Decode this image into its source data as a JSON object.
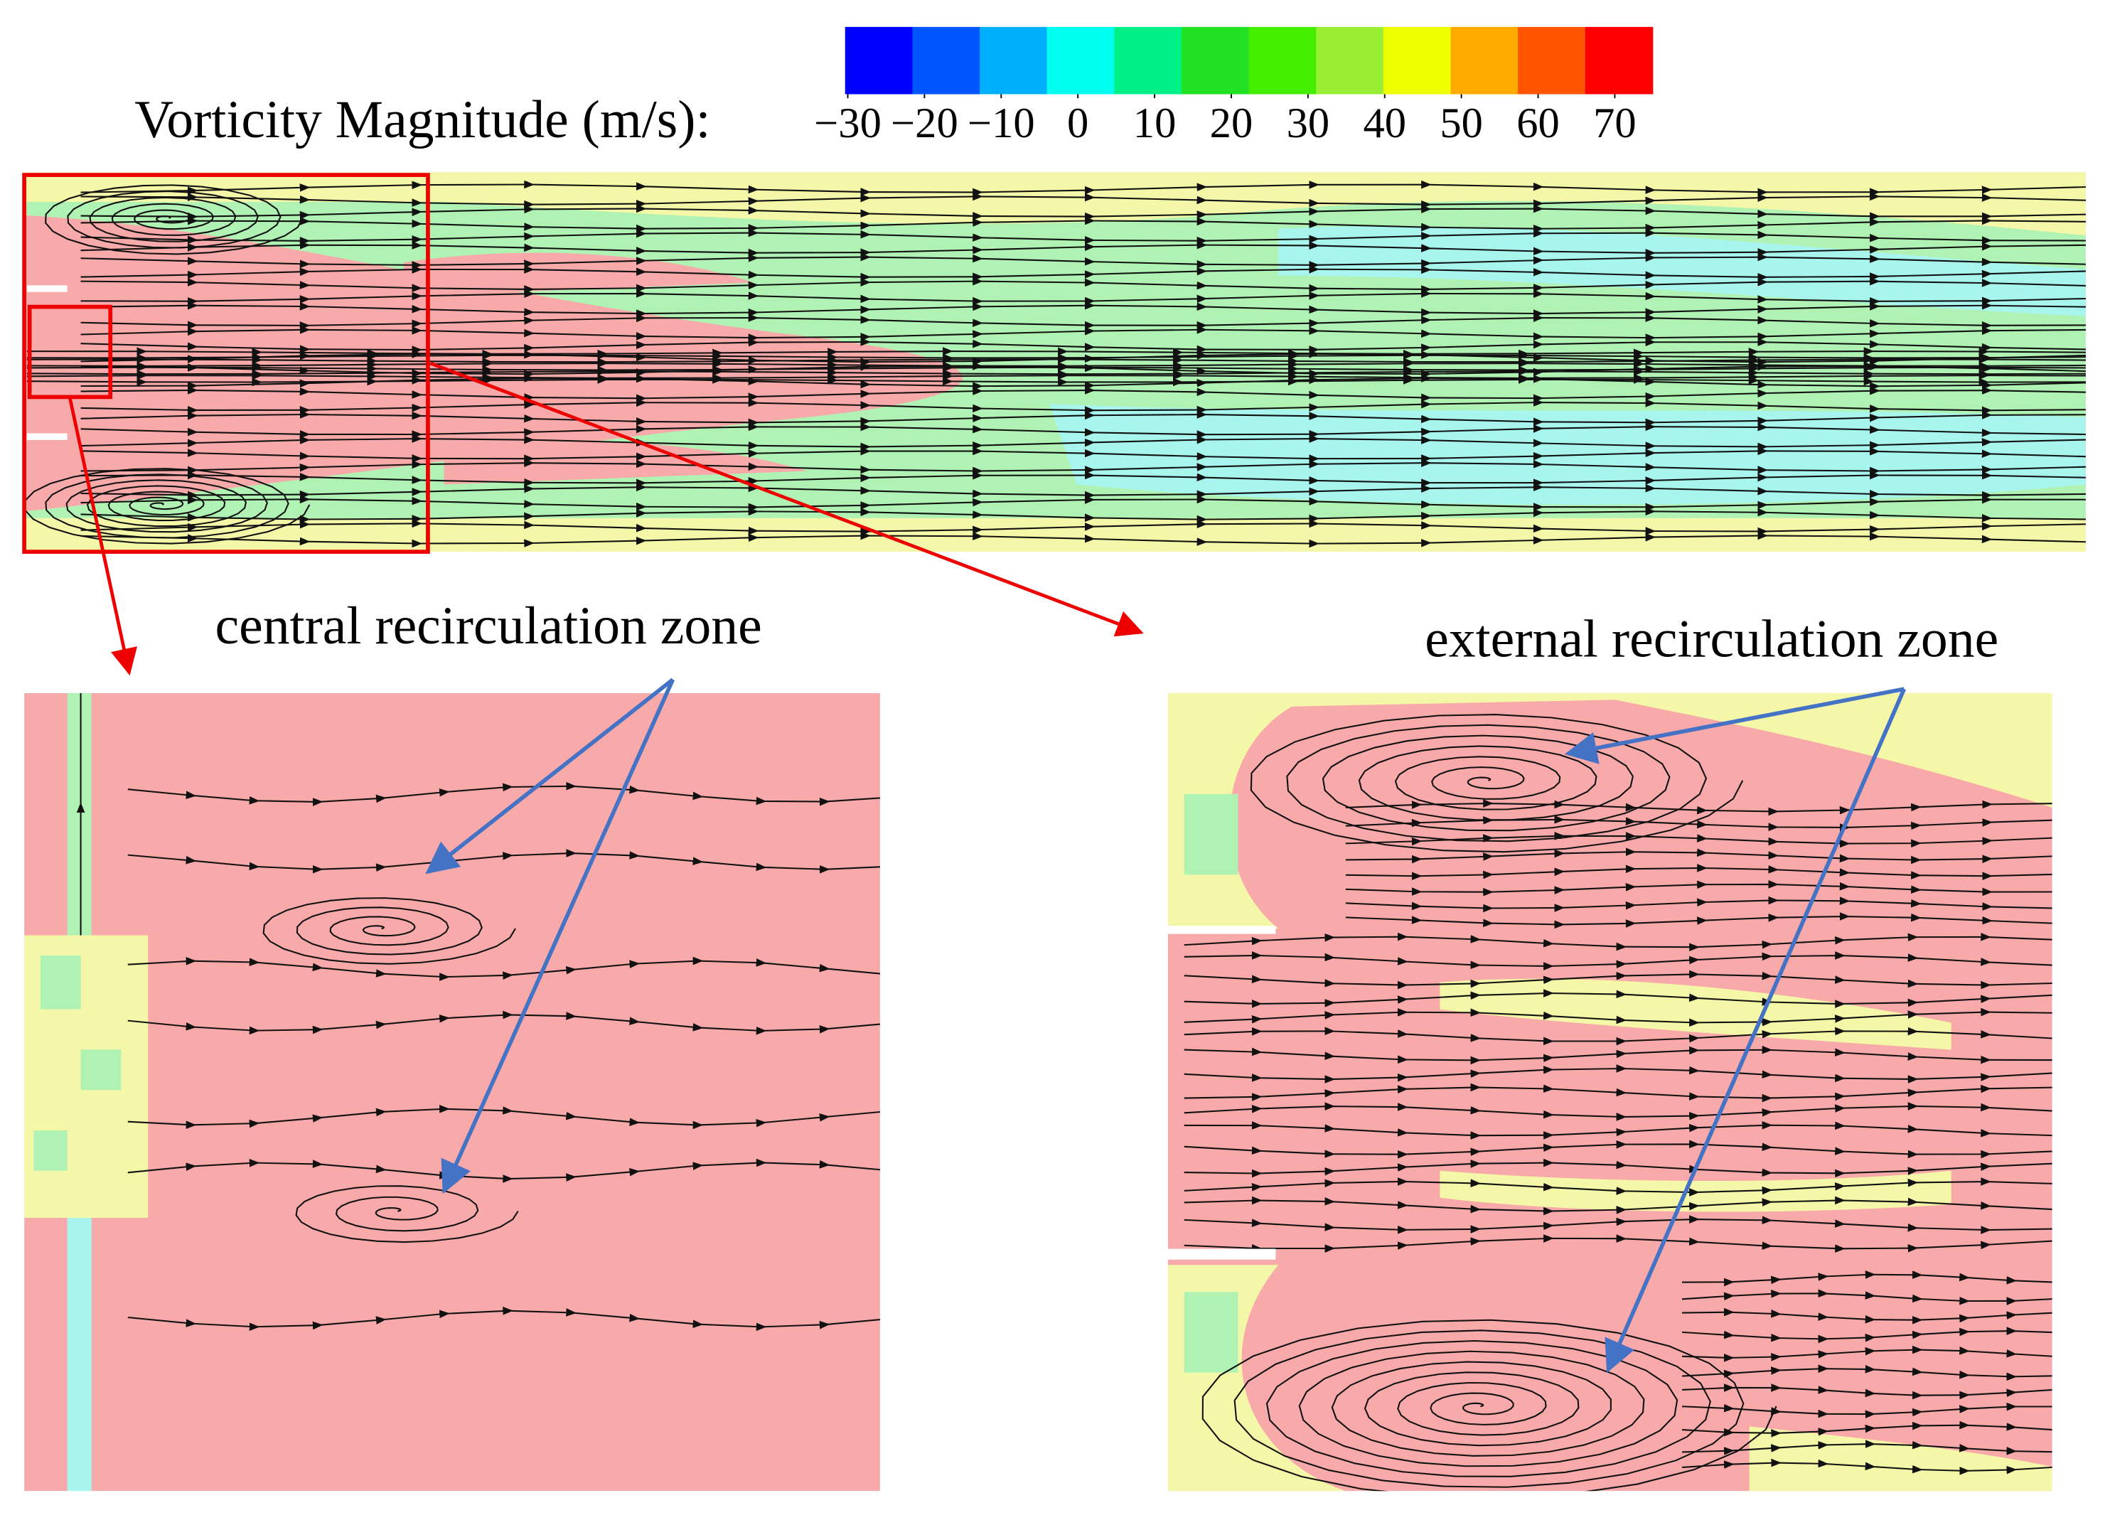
{
  "colorbar": {
    "title": "Vorticity Magnitude (m/s):",
    "colors": [
      "#0000ff",
      "#0055ff",
      "#00b0ff",
      "#00ffee",
      "#00f088",
      "#22e022",
      "#44ee00",
      "#99ee33",
      "#eeff00",
      "#ffaa00",
      "#ff5500",
      "#ff0000"
    ],
    "clim": [
      -30,
      70
    ],
    "ticks": [
      {
        "value": -30,
        "label": "−30"
      },
      {
        "value": -20,
        "label": "−20"
      },
      {
        "value": -10,
        "label": "−10"
      },
      0,
      10,
      20,
      30,
      40,
      50,
      60,
      70
    ]
  },
  "annotations": [
    "central recirculation zone",
    "external recirculation zone"
  ]
}
